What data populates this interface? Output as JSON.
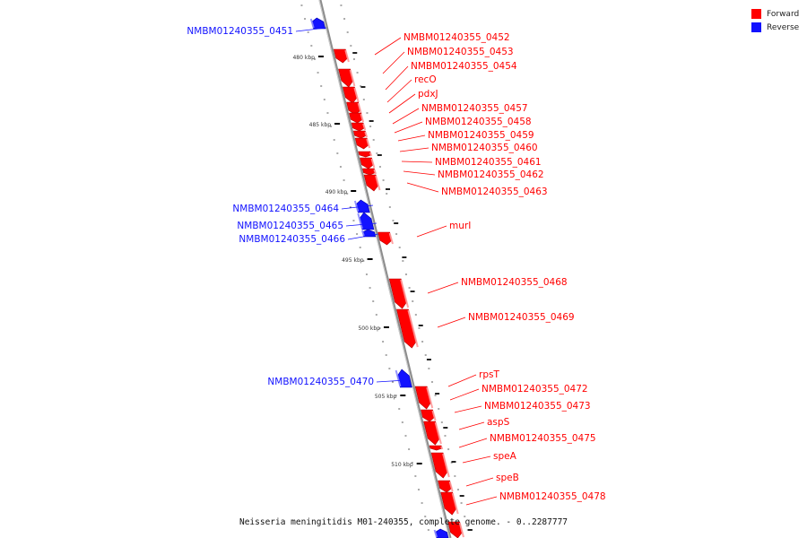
{
  "legend": {
    "forward": "Forward",
    "reverse": "Reverse"
  },
  "colors": {
    "forward": "#ff0000",
    "reverse": "#1212ff",
    "backbone": "#8c8c8c"
  },
  "caption": "Neisseria meningitidis M01-240355, complete genome. - 0..2287777",
  "scale_labels": [
    "480 kbp",
    "485 kbp",
    "490 kbp",
    "495 kbp",
    "500 kbp",
    "505 kbp",
    "510 kbp"
  ],
  "genes": [
    {
      "name": "NMBM01240355_0451",
      "strand": "reverse"
    },
    {
      "name": "NMBM01240355_0452",
      "strand": "forward"
    },
    {
      "name": "NMBM01240355_0453",
      "strand": "forward"
    },
    {
      "name": "NMBM01240355_0454",
      "strand": "forward"
    },
    {
      "name": "recO",
      "strand": "forward"
    },
    {
      "name": "pdxJ",
      "strand": "forward"
    },
    {
      "name": "NMBM01240355_0457",
      "strand": "forward"
    },
    {
      "name": "NMBM01240355_0458",
      "strand": "forward"
    },
    {
      "name": "NMBM01240355_0459",
      "strand": "forward"
    },
    {
      "name": "NMBM01240355_0460",
      "strand": "forward"
    },
    {
      "name": "NMBM01240355_0461",
      "strand": "forward"
    },
    {
      "name": "NMBM01240355_0462",
      "strand": "forward"
    },
    {
      "name": "NMBM01240355_0463",
      "strand": "forward"
    },
    {
      "name": "NMBM01240355_0464",
      "strand": "reverse"
    },
    {
      "name": "NMBM01240355_0465",
      "strand": "reverse"
    },
    {
      "name": "NMBM01240355_0466",
      "strand": "reverse"
    },
    {
      "name": "murI",
      "strand": "forward"
    },
    {
      "name": "NMBM01240355_0468",
      "strand": "forward"
    },
    {
      "name": "NMBM01240355_0469",
      "strand": "forward"
    },
    {
      "name": "NMBM01240355_0470",
      "strand": "reverse"
    },
    {
      "name": "rpsT",
      "strand": "forward"
    },
    {
      "name": "NMBM01240355_0472",
      "strand": "forward"
    },
    {
      "name": "NMBM01240355_0473",
      "strand": "forward"
    },
    {
      "name": "aspS",
      "strand": "forward"
    },
    {
      "name": "NMBM01240355_0475",
      "strand": "forward"
    },
    {
      "name": "speA",
      "strand": "forward"
    },
    {
      "name": "speB",
      "strand": "forward"
    },
    {
      "name": "NMBM01240355_0478",
      "strand": "forward"
    },
    {
      "name": "",
      "strand": "reverse"
    }
  ]
}
